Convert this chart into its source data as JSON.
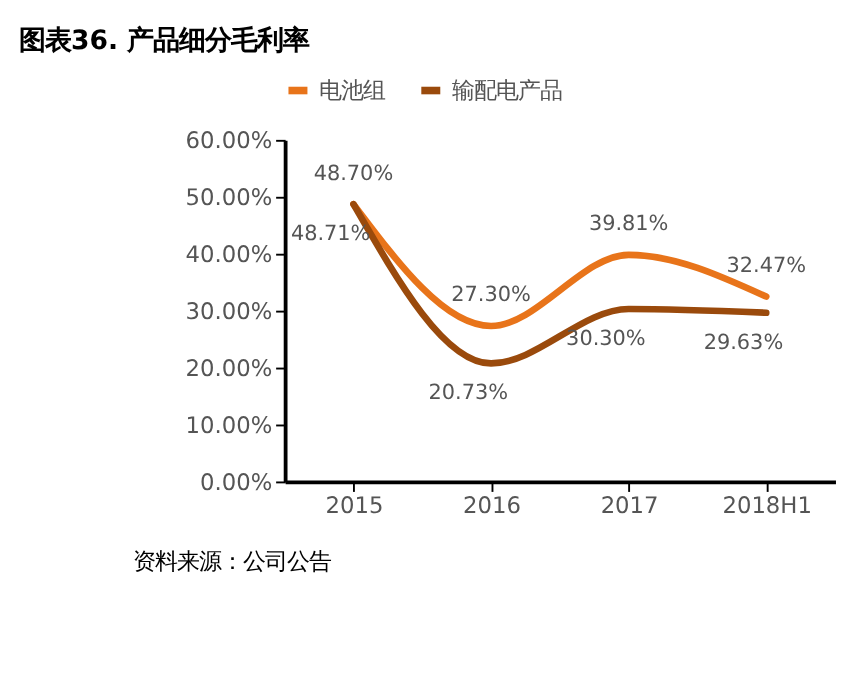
{
  "chart_data": {
    "type": "line",
    "title": "图表36.  产品细分毛利率",
    "categories": [
      "2015",
      "2016",
      "2017",
      "2018H1"
    ],
    "series": [
      {
        "name": "电池组",
        "color": "#e8741a",
        "values": [
          48.7,
          27.3,
          39.81,
          32.47
        ],
        "value_labels": [
          "48.70%",
          "27.30%",
          "39.81%",
          "32.47%"
        ]
      },
      {
        "name": "输配电产品",
        "color": "#9a4a0c",
        "values": [
          48.71,
          20.73,
          30.3,
          29.63
        ],
        "value_labels": [
          "48.71%",
          "20.73%",
          "30.30%",
          "29.63%"
        ]
      }
    ],
    "ylim": [
      0,
      60
    ],
    "yticks": [
      {
        "value": 0,
        "label": "0.00%"
      },
      {
        "value": 10,
        "label": "10.00%"
      },
      {
        "value": 20,
        "label": "20.00%"
      },
      {
        "value": 30,
        "label": "30.00%"
      },
      {
        "value": 40,
        "label": "40.00%"
      },
      {
        "value": 50,
        "label": "50.00%"
      },
      {
        "value": 60,
        "label": "60.00%"
      }
    ],
    "grid": false,
    "legend": "top",
    "marker": "none",
    "line_style": "solid",
    "annotations": [
      "资料来源：公司公告"
    ]
  }
}
